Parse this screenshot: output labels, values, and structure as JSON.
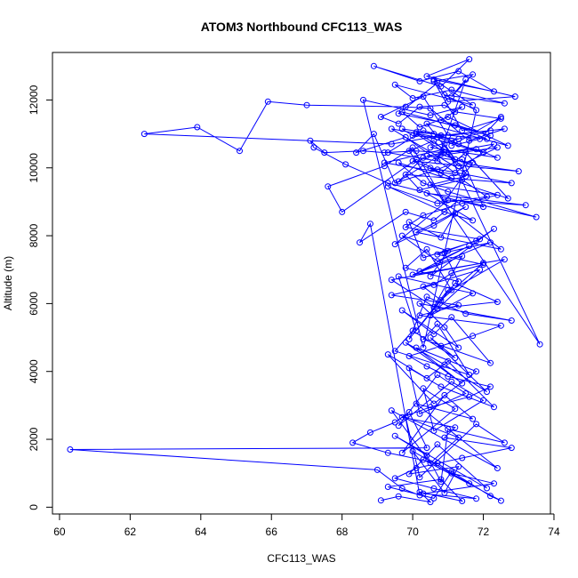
{
  "chart_data": {
    "type": "line",
    "title": "ATOM3 Northbound CFC113_WAS",
    "xlabel": "CFC113_WAS",
    "ylabel": "Altitude (m)",
    "xlim": [
      59.8,
      73.9
    ],
    "ylim": [
      -200,
      13400
    ],
    "x_ticks": [
      "60",
      "62",
      "64",
      "66",
      "68",
      "70",
      "72",
      "74"
    ],
    "y_ticks": [
      "0",
      "2000",
      "4000",
      "6000",
      "8000",
      "10000",
      "12000"
    ],
    "marker": "open-circle",
    "colors": {
      "series": "#0000ff",
      "axes": "#000000"
    },
    "series": [
      {
        "x": [
          69.1,
          69.6,
          70.5,
          70.2,
          71.4,
          70.8,
          69.3,
          70.6,
          71.1,
          72.2,
          72.5,
          70.3,
          71.6,
          70.0,
          70.9,
          71.3,
          69.9,
          70.7,
          72.1,
          69.5,
          70.4,
          70.8,
          71.0,
          72.6,
          71.8,
          70.2,
          69.8,
          71.3,
          70.5,
          69.4,
          72.4,
          70.1,
          71.7,
          70.9,
          69.7,
          71.2,
          70.3,
          70.6,
          72.0,
          71.1,
          69.6,
          70.7,
          71.5,
          70.2,
          69.9,
          70.8,
          72.3,
          71.0,
          70.4,
          69.3,
          70.6,
          71.8,
          70.1,
          71.4,
          69.8,
          70.9,
          72.1,
          70.5,
          71.2,
          70.0,
          69.5,
          71.6,
          70.7,
          70.3,
          72.2,
          71.1,
          70.6,
          69.7,
          71.3,
          70.9,
          70.2,
          72.8,
          71.5,
          70.4,
          69.9,
          71.0,
          70.7,
          72.4,
          71.2,
          70.1,
          69.6,
          71.7,
          70.5,
          71.9,
          70.3,
          70.8,
          72.0,
          69.4,
          70.6,
          71.4,
          70.0,
          72.6,
          71.1,
          70.4,
          69.8,
          71.3,
          70.9,
          72.2,
          70.2,
          71.6,
          70.7,
          69.7,
          71.0,
          70.5,
          72.3,
          71.8,
          70.3,
          69.9,
          70.8,
          71.2,
          72.5,
          70.1,
          71.5,
          70.6,
          69.5,
          71.0,
          73.2,
          70.4,
          71.7,
          70.9,
          69.3,
          70.7,
          72.1,
          71.4,
          70.2,
          69.8,
          72.8,
          70.5,
          71.1,
          70.0,
          73.0,
          71.6,
          70.8,
          69.6,
          70.3,
          72.4,
          71.3,
          70.6,
          69.9,
          73.6,
          70.9,
          71.2,
          70.1,
          72.0,
          70.7,
          69.4,
          71.5,
          70.4,
          72.7,
          71.0,
          70.2,
          69.7,
          72.2,
          70.8,
          71.4,
          70.5,
          68.6,
          70.3,
          71.8,
          70.9,
          72.6,
          71.1,
          70.0,
          69.5,
          71.7,
          70.6,
          72.3,
          71.3,
          70.2,
          68.9,
          70.8,
          71.6,
          70.4,
          72.9,
          71.0,
          70.7,
          69.6,
          71.2,
          72.1,
          70.1,
          70.9,
          69.2,
          71.5,
          70.5,
          72.4,
          71.4,
          70.3,
          69.8,
          71.9,
          70.7,
          72.0,
          71.1,
          70.6,
          69.4,
          71.3,
          70.2,
          72.5,
          71.7,
          70.8,
          69.9,
          70.4,
          71.0,
          72.2,
          71.6,
          70.5,
          69.7,
          71.2,
          70.9,
          72.8,
          71.4,
          70.1,
          69.5,
          70.6,
          71.8,
          70.3,
          72.3,
          71.1,
          70.7,
          69.3,
          68.3,
          68.8,
          69.5,
          69.9,
          70.4,
          60.3,
          69.0,
          69.7,
          70.2,
          68.8,
          68.5,
          69.8,
          70.6,
          71.3,
          73.5,
          71.0,
          70.3,
          69.6,
          72.7,
          71.5,
          70.8,
          70.1,
          68.0,
          67.6,
          69.2,
          70.0,
          70.9,
          71.7,
          70.4,
          72.3,
          71.2,
          69.8,
          68.4,
          68.9,
          69.5,
          70.7,
          71.4,
          72.0,
          69.3,
          68.1,
          67.2,
          67.1,
          67.5,
          68.6,
          69.2,
          70.1,
          70.9,
          71.8,
          72.4,
          70.5,
          71.3,
          70.0,
          69.7,
          70.6,
          71.1,
          72.2,
          70.8,
          69.4,
          62.4,
          63.9,
          65.1,
          65.9,
          67.0,
          69.8,
          70.5,
          71.6,
          72.6,
          71.0,
          70.3,
          69.1,
          69.6,
          70.2,
          70.9,
          71.2,
          72.5,
          71.4,
          70.6,
          71.7,
          71.1,
          71.5,
          70.7,
          69.3,
          70.3,
          70.8,
          71.3,
          71.9,
          72.5,
          71.1
        ],
        "y": [
          200,
          320,
          150,
          450,
          180,
          820,
          600,
          260,
          1050,
          330,
          190,
          1400,
          700,
          1650,
          420,
          1200,
          980,
          1850,
          560,
          2100,
          1530,
          750,
          2300,
          1900,
          2450,
          880,
          2650,
          2050,
          1300,
          2850,
          1150,
          3050,
          2600,
          3300,
          1600,
          2900,
          3500,
          2250,
          3150,
          3700,
          2400,
          3900,
          3350,
          2750,
          4100,
          3550,
          2950,
          4300,
          3800,
          4500,
          3050,
          4000,
          4700,
          3650,
          4850,
          4200,
          3400,
          5000,
          4400,
          5200,
          4600,
          3900,
          5400,
          4950,
          4250,
          5600,
          5100,
          5800,
          4700,
          5300,
          6000,
          5500,
          5700,
          6200,
          4950,
          6400,
          5850,
          6050,
          6600,
          5200,
          6800,
          6300,
          5650,
          7000,
          6500,
          6100,
          7200,
          6700,
          5900,
          7400,
          6850,
          7300,
          6400,
          7600,
          7050,
          6650,
          7500,
          7800,
          6950,
          7700,
          7250,
          8000,
          7550,
          6800,
          8200,
          7850,
          7350,
          8400,
          7950,
          8650,
          7600,
          8100,
          8850,
          8300,
          7750,
          9050,
          8900,
          9250,
          8450,
          8700,
          9450,
          8950,
          9150,
          9650,
          9350,
          9800,
          9550,
          10000,
          9700,
          10200,
          9900,
          10100,
          10400,
          9600,
          10300,
          10600,
          10050,
          10800,
          10500,
          4800,
          10700,
          10250,
          11000,
          10450,
          10900,
          11150,
          9850,
          11300,
          10650,
          11500,
          11200,
          11650,
          10950,
          11400,
          11800,
          11550,
          12000,
          4700,
          11700,
          12150,
          11900,
          12300,
          12050,
          12450,
          11850,
          12600,
          12250,
          12850,
          12550,
          13000,
          12400,
          13200,
          12700,
          12100,
          11950,
          12500,
          11600,
          11250,
          10850,
          11050,
          10550,
          10150,
          9750,
          9500,
          9200,
          8950,
          8600,
          8250,
          7900,
          7450,
          7150,
          6900,
          6550,
          6250,
          5950,
          5650,
          5350,
          5050,
          4750,
          4450,
          4150,
          3850,
          3550,
          3250,
          2950,
          2650,
          2350,
          2050,
          1750,
          1450,
          1150,
          850,
          550,
          250,
          400,
          700,
          1000,
          1300,
          1600,
          1900,
          2200,
          2500,
          2800,
          1750,
          1700,
          1100,
          550,
          350,
          8350,
          7800,
          8700,
          8450,
          9050,
          8550,
          9300,
          9550,
          10150,
          9100,
          10450,
          9850,
          10250,
          8700,
          9450,
          10050,
          10600,
          9000,
          10150,
          10350,
          10700,
          9850,
          10900,
          10450,
          11000,
          9550,
          9950,
          10250,
          8850,
          9550,
          10100,
          10600,
          10800,
          10450,
          10500,
          10450,
          10500,
          10450,
          10550,
          10300,
          10600,
          10850,
          10950,
          11150,
          11000,
          10800,
          11100,
          10950,
          10700,
          11000,
          11200,
          10500,
          11950,
          11850,
          11800,
          11750,
          10800,
          11150,
          10950,
          12100,
          11500,
          11300,
          11800,
          11850,
          11650,
          11450,
          11100,
          12550,
          12750,
          12100,
          12600,
          10200,
          10450,
          11100,
          10950,
          10700,
          10850,
          11500,
          10650
        ]
      }
    ]
  }
}
